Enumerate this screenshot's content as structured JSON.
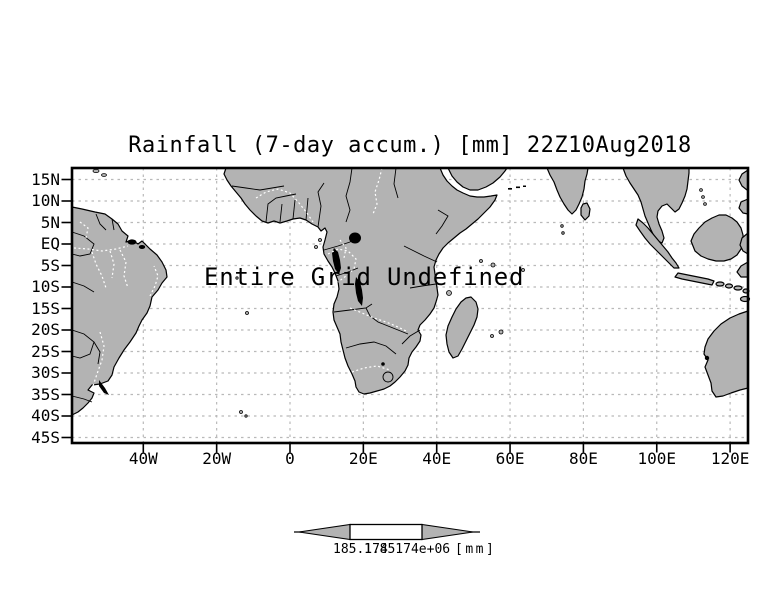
{
  "chart_data": {
    "type": "map",
    "title": "Rainfall (7-day accum.) [mm] 22Z10Aug2018",
    "variable": "Rainfall (7-day accum.)",
    "valid_time": "22Z10Aug2018",
    "annotation": "Entire Grid Undefined",
    "x_axis": {
      "ticks": [
        "40W",
        "20W",
        "0",
        "20E",
        "40E",
        "60E",
        "80E",
        "100E",
        "120E"
      ]
    },
    "y_axis": {
      "ticks": [
        "15N",
        "10N",
        "5N",
        "EQ",
        "5S",
        "10S",
        "15S",
        "20S",
        "25S",
        "30S",
        "35S",
        "40S",
        "45S"
      ]
    },
    "grid": true,
    "colorbar": {
      "labels": [
        "185.174",
        "1.85174e+06"
      ],
      "units": "[mm]"
    },
    "colors": {
      "land": "#b3b3b3",
      "coastline": "#000000",
      "gridline": "#b9b9b9",
      "ocean": "#ffffff",
      "lakes": "#000000",
      "rivers": "#ffffff"
    }
  }
}
